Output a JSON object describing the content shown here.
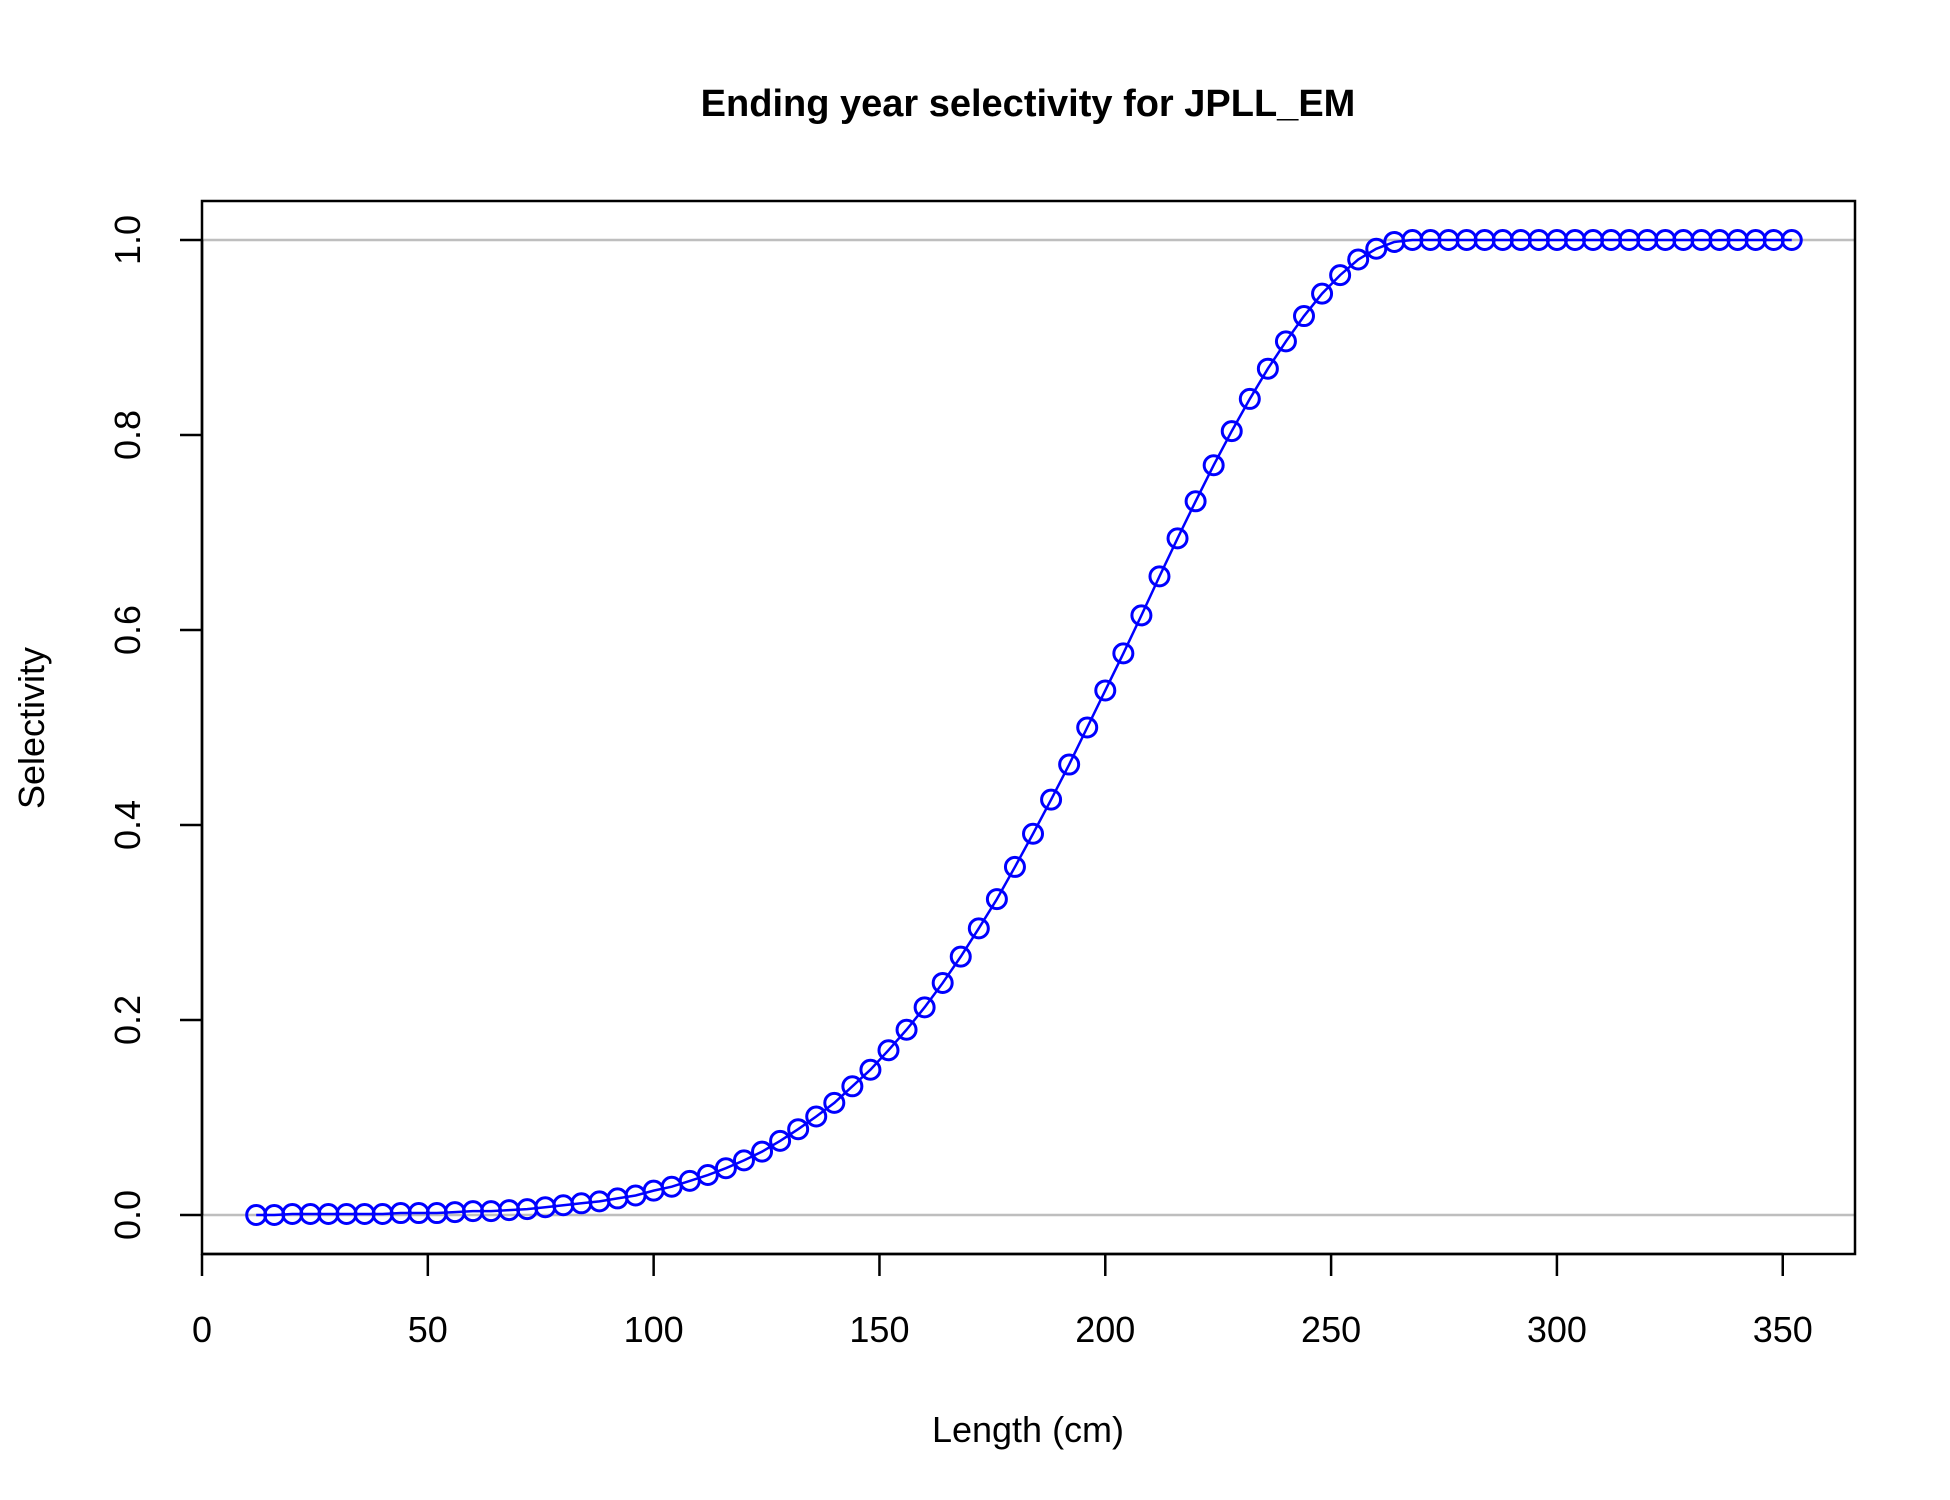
{
  "chart_data": {
    "type": "line",
    "title": "Ending year selectivity for JPLL_EM",
    "xlabel": "Length (cm)",
    "ylabel": "Selectivity",
    "xlim": [
      0,
      366
    ],
    "ylim": [
      -0.04,
      1.04
    ],
    "x_ticks": [
      0,
      50,
      100,
      150,
      200,
      250,
      300,
      350
    ],
    "x_tick_labels": [
      "0",
      "50",
      "100",
      "150",
      "200",
      "250",
      "300",
      "350"
    ],
    "y_ticks": [
      0.0,
      0.2,
      0.4,
      0.6,
      0.8,
      1.0
    ],
    "y_tick_labels": [
      "0.0",
      "0.2",
      "0.4",
      "0.6",
      "0.8",
      "1.0"
    ],
    "reference_lines_y": [
      0,
      1
    ],
    "grid": false,
    "series": [
      {
        "color": "#0000ff",
        "marker": "open-circle",
        "x": [
          12,
          16,
          20,
          24,
          28,
          32,
          36,
          40,
          44,
          48,
          52,
          56,
          60,
          64,
          68,
          72,
          76,
          80,
          84,
          88,
          92,
          96,
          100,
          104,
          108,
          112,
          116,
          120,
          124,
          128,
          132,
          136,
          140,
          144,
          148,
          152,
          156,
          160,
          164,
          168,
          172,
          176,
          180,
          184,
          188,
          192,
          196,
          200,
          204,
          208,
          212,
          216,
          220,
          224,
          228,
          232,
          236,
          240,
          244,
          248,
          252,
          256,
          260,
          264,
          268,
          272,
          276,
          280,
          284,
          288,
          292,
          296,
          300,
          304,
          308,
          312,
          316,
          320,
          324,
          328,
          332,
          336,
          340,
          344,
          348,
          352
        ],
        "values": [
          0.0,
          0.0,
          0.001,
          0.001,
          0.001,
          0.001,
          0.001,
          0.001,
          0.002,
          0.002,
          0.002,
          0.003,
          0.004,
          0.004,
          0.005,
          0.006,
          0.008,
          0.01,
          0.012,
          0.014,
          0.017,
          0.02,
          0.025,
          0.029,
          0.035,
          0.041,
          0.048,
          0.056,
          0.065,
          0.076,
          0.088,
          0.101,
          0.115,
          0.132,
          0.149,
          0.169,
          0.19,
          0.213,
          0.238,
          0.265,
          0.294,
          0.324,
          0.357,
          0.391,
          0.426,
          0.462,
          0.5,
          0.538,
          0.576,
          0.615,
          0.655,
          0.694,
          0.732,
          0.769,
          0.804,
          0.837,
          0.868,
          0.896,
          0.922,
          0.945,
          0.964,
          0.98,
          0.991,
          0.998,
          1.0,
          1.0,
          1.0,
          1.0,
          1.0,
          1.0,
          1.0,
          1.0,
          1.0,
          1.0,
          1.0,
          1.0,
          1.0,
          1.0,
          1.0,
          1.0,
          1.0,
          1.0,
          1.0,
          1.0,
          1.0,
          1.0
        ]
      }
    ],
    "reference_line_color": "#bebebe"
  }
}
